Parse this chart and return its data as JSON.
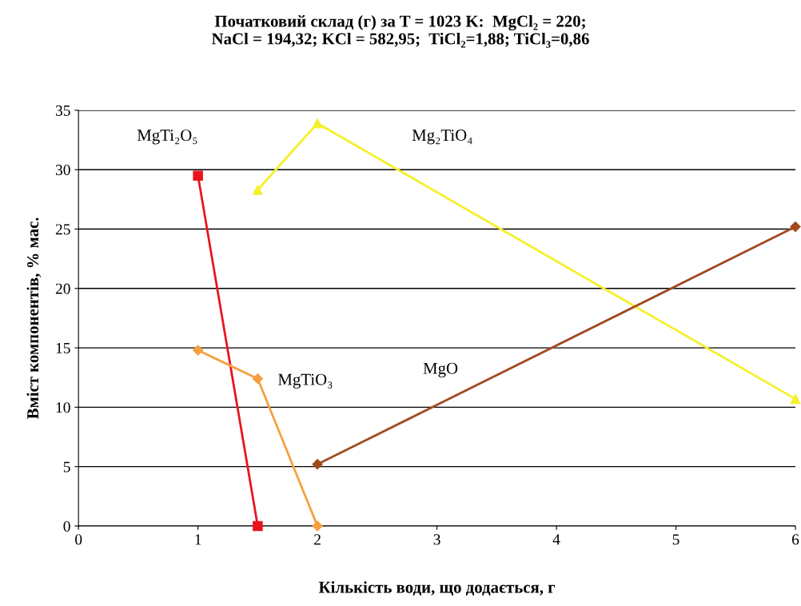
{
  "chart_data": {
    "type": "line",
    "title": "Початковий склад (г) за T = 1023 K:  MgCl₂ = 220;\nNaCl = 194,32; KCl = 582,95;  TiCl₂=1,88; TiCl₃=0,86",
    "xlabel": "Кількість води, що додається, г",
    "ylabel": "Вміст компонентів, % мас.",
    "series": [
      {
        "name": "MgTi₂O₅",
        "color": "#e8141e",
        "marker": "square",
        "x": [
          1,
          1.5
        ],
        "values": [
          29.5,
          0
        ]
      },
      {
        "name": "Mg₂TiO₄",
        "color": "#f5f02a",
        "marker": "triangle",
        "x": [
          1.5,
          2,
          6
        ],
        "values": [
          28.3,
          33.9,
          10.7
        ]
      },
      {
        "name": "MgTiO₃",
        "color": "#f5a040",
        "marker": "diamond",
        "x": [
          1,
          1.5,
          2
        ],
        "values": [
          14.8,
          12.4,
          0
        ]
      },
      {
        "name": "MgO",
        "color": "#a04a1e",
        "marker": "diamond",
        "x": [
          2,
          6
        ],
        "values": [
          5.2,
          25.2
        ]
      }
    ],
    "xlim": [
      0,
      6
    ],
    "xticks": [
      0,
      1,
      2,
      3,
      4,
      5,
      6
    ],
    "ylim": [
      0,
      35
    ],
    "yticks": [
      0,
      5,
      10,
      15,
      20,
      25,
      30,
      35
    ],
    "grid": "y",
    "legend": false,
    "line_style": "solid"
  }
}
